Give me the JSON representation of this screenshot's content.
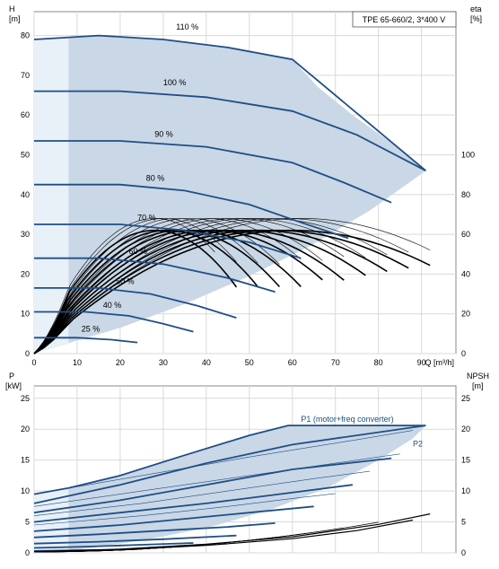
{
  "colors": {
    "grid": "#d9d9d9",
    "axis": "#000000",
    "curve_blue": "#1f4e86",
    "curve_black": "#000000",
    "region_fill": "#c9d7e6",
    "region_light": "#e8f0f8",
    "frame": "#888888"
  },
  "chart_data": [
    {
      "type": "line",
      "id": "head-efficiency",
      "title": "TPE 65-660/2, 3*400 V",
      "xlabel": "Q [m³/h]",
      "ylabel_left": [
        "H",
        "[m]"
      ],
      "ylabel_right": [
        "eta",
        "[%]"
      ],
      "xlim": [
        0,
        98
      ],
      "ylim": [
        0,
        86
      ],
      "x_ticks": [
        0,
        10,
        20,
        30,
        40,
        50,
        60,
        70,
        80,
        90
      ],
      "y_ticks_left": [
        0,
        10,
        20,
        30,
        40,
        50,
        60,
        70,
        80
      ],
      "y_ticks_right": [
        {
          "label": "0",
          "at_H": 0
        },
        {
          "label": "20",
          "at_H": 10
        },
        {
          "label": "40",
          "at_H": 20
        },
        {
          "label": "60",
          "at_H": 30
        },
        {
          "label": "80",
          "at_H": 40
        },
        {
          "label": "100",
          "at_H": 50
        }
      ],
      "operating_region": {
        "points": [
          [
            0,
            0
          ],
          [
            0,
            79
          ],
          [
            15,
            80
          ],
          [
            30,
            79
          ],
          [
            45,
            77
          ],
          [
            60,
            74
          ],
          [
            66,
            67
          ],
          [
            74,
            60
          ],
          [
            83,
            53
          ],
          [
            91,
            46
          ],
          [
            78,
            36
          ],
          [
            64,
            27
          ],
          [
            50,
            19.5
          ],
          [
            35,
            12.5
          ],
          [
            20,
            6.5
          ],
          [
            6,
            2
          ],
          [
            0,
            0
          ]
        ]
      },
      "head_curves": [
        {
          "name": "110 %",
          "label_at": [
            33,
            81.5
          ],
          "points": [
            [
              0,
              79
            ],
            [
              15,
              80
            ],
            [
              30,
              79
            ],
            [
              45,
              77
            ],
            [
              60,
              74
            ],
            [
              91,
              46
            ]
          ]
        },
        {
          "name": "100 %",
          "label_at": [
            30,
            67.5
          ],
          "points": [
            [
              0,
              66
            ],
            [
              20,
              66
            ],
            [
              40,
              64.5
            ],
            [
              60,
              61
            ],
            [
              75,
              55
            ],
            [
              91,
              46
            ]
          ]
        },
        {
          "name": "90 %",
          "label_at": [
            28,
            54.5
          ],
          "points": [
            [
              0,
              53.5
            ],
            [
              20,
              53.5
            ],
            [
              40,
              52
            ],
            [
              60,
              48
            ],
            [
              72,
              43
            ],
            [
              83,
              38
            ]
          ]
        },
        {
          "name": "80 %",
          "label_at": [
            26,
            43.5
          ],
          "points": [
            [
              0,
              42.5
            ],
            [
              20,
              42.5
            ],
            [
              35,
              41
            ],
            [
              50,
              37.5
            ],
            [
              62,
              33
            ],
            [
              73,
              29
            ]
          ]
        },
        {
          "name": "70 %",
          "label_at": [
            24,
            33.5
          ],
          "points": [
            [
              0,
              32.5
            ],
            [
              20,
              32.5
            ],
            [
              35,
              31
            ],
            [
              50,
              28
            ],
            [
              62,
              24
            ]
          ]
        },
        {
          "name": "60 %",
          "label_at": [
            22,
            25
          ],
          "points": [
            [
              0,
              24
            ],
            [
              15,
              24
            ],
            [
              30,
              22.5
            ],
            [
              45,
              19
            ],
            [
              56,
              15.5
            ]
          ]
        },
        {
          "name": "50 %",
          "label_at": [
            19,
            17.5
          ],
          "points": [
            [
              0,
              16.5
            ],
            [
              15,
              16.5
            ],
            [
              27,
              15
            ],
            [
              38,
              12
            ],
            [
              47,
              9
            ]
          ]
        },
        {
          "name": "40 %",
          "label_at": [
            16,
            11.5
          ],
          "points": [
            [
              0,
              10.5
            ],
            [
              12,
              10.5
            ],
            [
              22,
              9.5
            ],
            [
              30,
              7.5
            ],
            [
              37,
              5.5
            ]
          ]
        },
        {
          "name": "25 %",
          "label_at": [
            11,
            5.5
          ],
          "points": [
            [
              0,
              4
            ],
            [
              10,
              4
            ],
            [
              18,
              3.5
            ],
            [
              24,
              2.8
            ]
          ]
        }
      ],
      "efficiency_curves": {
        "thin_qmax": [
          42,
          47,
          52,
          57,
          62,
          67,
          72,
          77,
          82,
          87,
          92
        ],
        "thin_peak_q": [
          28,
          30,
          33,
          36,
          40,
          43,
          47,
          50,
          54,
          58,
          62
        ],
        "thin_peak_eta": 68,
        "bold_qmax": [
          47,
          52,
          57,
          62,
          67,
          72,
          77,
          82,
          87,
          92
        ],
        "bold_peak_q": [
          28,
          31,
          34,
          37,
          41,
          44,
          48,
          52,
          56,
          60
        ],
        "bold_peak_eta": 62,
        "knee_q": 8
      }
    },
    {
      "type": "line",
      "id": "power-npsh",
      "title": "",
      "xlabel": "",
      "ylabel_left": [
        "P",
        "[kW]"
      ],
      "ylabel_right": [
        "NPSH",
        "[m]"
      ],
      "xlim": [
        0,
        98
      ],
      "ylim": [
        0,
        27
      ],
      "y_ticks_left": [
        0,
        5,
        10,
        15,
        20,
        25
      ],
      "y_ticks_right": [
        0,
        5,
        10,
        15,
        20,
        25
      ],
      "annotations": [
        {
          "text": "P1 (motor+freq converter)",
          "at": [
            62,
            21.2
          ]
        },
        {
          "text": "P2",
          "at": [
            88,
            17.2
          ]
        }
      ],
      "operating_region": {
        "points": [
          [
            0,
            0
          ],
          [
            0,
            9.5
          ],
          [
            8,
            10.5
          ],
          [
            20,
            12.5
          ],
          [
            35,
            15.8
          ],
          [
            50,
            19
          ],
          [
            59,
            20.6
          ],
          [
            91,
            20.6
          ],
          [
            88,
            18.5
          ],
          [
            80,
            15
          ],
          [
            68,
            10.5
          ],
          [
            55,
            7
          ],
          [
            40,
            4
          ],
          [
            25,
            2
          ],
          [
            10,
            0.5
          ],
          [
            0,
            0
          ]
        ]
      },
      "p1_outline": [
        [
          0,
          9.5
        ],
        [
          8,
          10.5
        ],
        [
          20,
          12.5
        ],
        [
          35,
          15.8
        ],
        [
          50,
          19
        ],
        [
          59,
          20.6
        ],
        [
          91,
          20.6
        ]
      ],
      "power_curves_blue": [
        {
          "points": [
            [
              0,
              8
            ],
            [
              20,
              11
            ],
            [
              40,
              14.5
            ],
            [
              60,
              17.5
            ],
            [
              91,
              20.6
            ]
          ]
        },
        {
          "points": [
            [
              0,
              6.5
            ],
            [
              20,
              8.5
            ],
            [
              40,
              11
            ],
            [
              60,
              13.5
            ],
            [
              83,
              15.3
            ]
          ]
        },
        {
          "points": [
            [
              0,
              5
            ],
            [
              20,
              6.5
            ],
            [
              40,
              8
            ],
            [
              57,
              9.5
            ],
            [
              74,
              11
            ]
          ]
        },
        {
          "points": [
            [
              0,
              3.5
            ],
            [
              20,
              4.5
            ],
            [
              35,
              5.5
            ],
            [
              50,
              6.5
            ],
            [
              65,
              7.5
            ]
          ]
        },
        {
          "points": [
            [
              0,
              2.5
            ],
            [
              15,
              3
            ],
            [
              30,
              3.6
            ],
            [
              45,
              4.2
            ],
            [
              56,
              4.8
            ]
          ]
        },
        {
          "points": [
            [
              0,
              1.5
            ],
            [
              15,
              1.8
            ],
            [
              30,
              2.2
            ],
            [
              47,
              2.8
            ]
          ]
        },
        {
          "points": [
            [
              0,
              0.8
            ],
            [
              12,
              1
            ],
            [
              25,
              1.3
            ],
            [
              37,
              1.6
            ]
          ]
        },
        {
          "points": [
            [
              0,
              0.3
            ],
            [
              10,
              0.4
            ],
            [
              18,
              0.5
            ],
            [
              24,
              0.6
            ]
          ]
        }
      ],
      "thin_p1_curves": [
        {
          "points": [
            [
              0,
              9.5
            ],
            [
              25,
              12.5
            ],
            [
              50,
              15.5
            ],
            [
              75,
              18.3
            ],
            [
              88,
              19.8
            ]
          ]
        },
        {
          "points": [
            [
              0,
              7.5
            ],
            [
              25,
              10
            ],
            [
              50,
              12.5
            ],
            [
              70,
              14.5
            ],
            [
              85,
              16
            ]
          ]
        },
        {
          "points": [
            [
              0,
              6
            ],
            [
              25,
              8
            ],
            [
              45,
              10
            ],
            [
              65,
              12
            ],
            [
              78,
              13.2
            ]
          ]
        },
        {
          "points": [
            [
              0,
              4.5
            ],
            [
              25,
              6
            ],
            [
              45,
              7.5
            ],
            [
              60,
              8.8
            ],
            [
              70,
              9.6
            ]
          ]
        }
      ],
      "npsh_curves": [
        {
          "points": [
            [
              0,
              0.2
            ],
            [
              20,
              0.6
            ],
            [
              40,
              1.4
            ],
            [
              60,
              2.6
            ],
            [
              80,
              4.6
            ],
            [
              92,
              6.3
            ]
          ]
        },
        {
          "points": [
            [
              0,
              0.2
            ],
            [
              20,
              0.5
            ],
            [
              40,
              1.2
            ],
            [
              60,
              2.3
            ],
            [
              75,
              3.6
            ],
            [
              88,
              5.3
            ]
          ]
        }
      ]
    }
  ]
}
